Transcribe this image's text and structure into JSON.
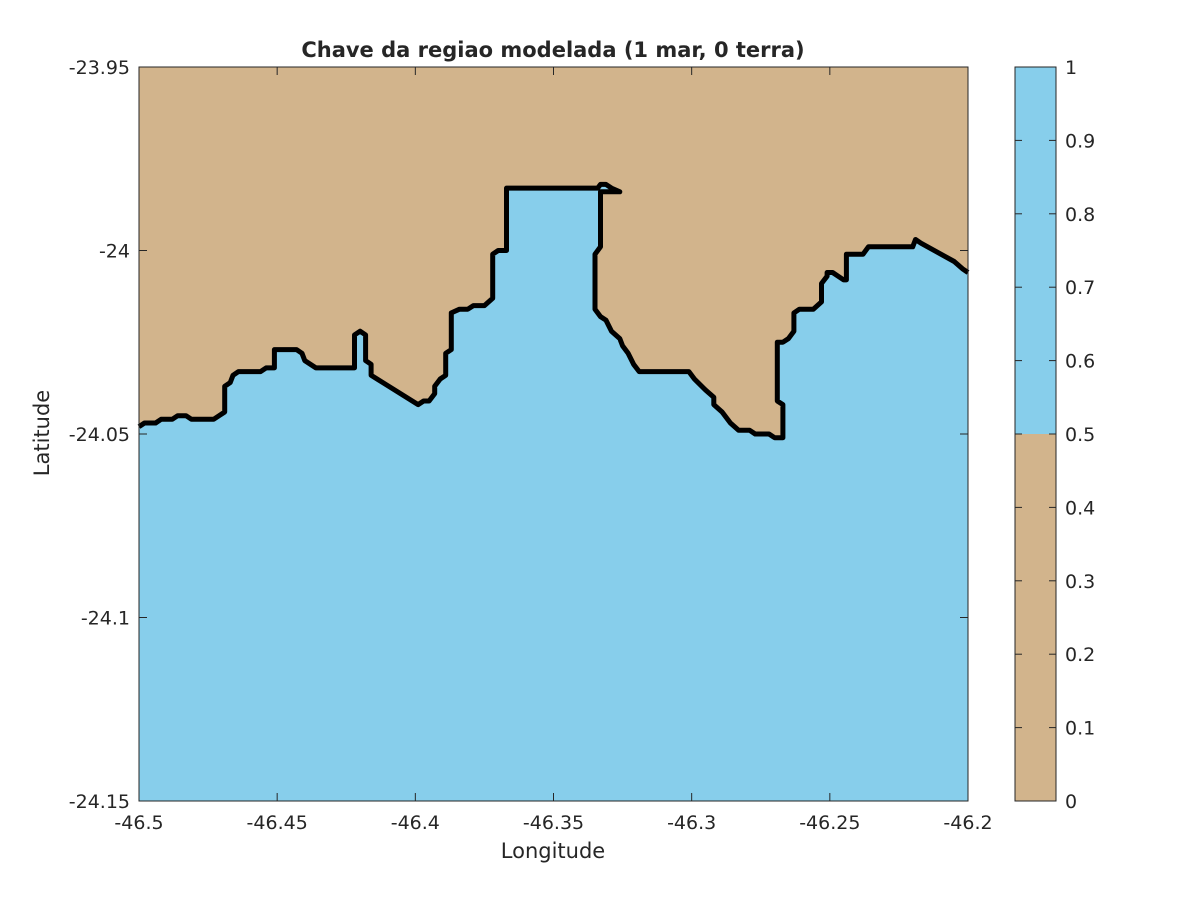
{
  "chart_data": {
    "type": "heatmap",
    "title": "Chave da regiao modelada (1 mar, 0 terra)",
    "xlabel": "Longitude",
    "ylabel": "Latitude",
    "xlim": [
      -46.5,
      -46.2
    ],
    "ylim": [
      -24.15,
      -23.95
    ],
    "xticks": [
      -46.5,
      -46.45,
      -46.4,
      -46.35,
      -46.3,
      -46.25,
      -46.2
    ],
    "xtick_labels": [
      "-46.5",
      "-46.45",
      "-46.4",
      "-46.35",
      "-46.3",
      "-46.25",
      "-46.2"
    ],
    "yticks": [
      -23.95,
      -24.0,
      -24.05,
      -24.1,
      -24.15
    ],
    "ytick_labels": [
      "-23.95",
      "-24",
      "-24.05",
      "-24.1",
      "-24.15"
    ],
    "categories": [
      {
        "value": 1,
        "meaning": "mar",
        "color": "#87ceeb"
      },
      {
        "value": 0,
        "meaning": "terra",
        "color": "#d2b48c"
      }
    ],
    "colorbar": {
      "lim": [
        0,
        1
      ],
      "ticks": [
        0,
        0.1,
        0.2,
        0.3,
        0.4,
        0.5,
        0.6,
        0.7,
        0.8,
        0.9,
        1
      ],
      "tick_labels": [
        "0",
        "0.1",
        "0.2",
        "0.3",
        "0.4",
        "0.5",
        "0.6",
        "0.7",
        "0.8",
        "0.9",
        "1"
      ],
      "segments": [
        {
          "from": 0,
          "to": 0.5,
          "color": "#d2b48c"
        },
        {
          "from": 0.5,
          "to": 1,
          "color": "#87ceeb"
        }
      ]
    },
    "coastline": {
      "color": "#000000",
      "points": [
        [
          -46.5,
          -24.048
        ],
        [
          -46.498,
          -24.047
        ],
        [
          -46.494,
          -24.047
        ],
        [
          -46.492,
          -24.046
        ],
        [
          -46.488,
          -24.046
        ],
        [
          -46.486,
          -24.045
        ],
        [
          -46.483,
          -24.045
        ],
        [
          -46.481,
          -24.046
        ],
        [
          -46.473,
          -24.046
        ],
        [
          -46.471,
          -24.045
        ],
        [
          -46.469,
          -24.044
        ],
        [
          -46.469,
          -24.037
        ],
        [
          -46.467,
          -24.036
        ],
        [
          -46.466,
          -24.034
        ],
        [
          -46.464,
          -24.033
        ],
        [
          -46.456,
          -24.033
        ],
        [
          -46.454,
          -24.032
        ],
        [
          -46.451,
          -24.032
        ],
        [
          -46.451,
          -24.027
        ],
        [
          -46.443,
          -24.027
        ],
        [
          -46.441,
          -24.028
        ],
        [
          -46.44,
          -24.03
        ],
        [
          -46.436,
          -24.032
        ],
        [
          -46.422,
          -24.032
        ],
        [
          -46.422,
          -24.023
        ],
        [
          -46.42,
          -24.022
        ],
        [
          -46.418,
          -24.023
        ],
        [
          -46.418,
          -24.03
        ],
        [
          -46.416,
          -24.031
        ],
        [
          -46.416,
          -24.034
        ],
        [
          -46.399,
          -24.042
        ],
        [
          -46.397,
          -24.041
        ],
        [
          -46.395,
          -24.041
        ],
        [
          -46.393,
          -24.039
        ],
        [
          -46.393,
          -24.037
        ],
        [
          -46.391,
          -24.035
        ],
        [
          -46.389,
          -24.034
        ],
        [
          -46.389,
          -24.028
        ],
        [
          -46.387,
          -24.027
        ],
        [
          -46.387,
          -24.017
        ],
        [
          -46.384,
          -24.016
        ],
        [
          -46.381,
          -24.016
        ],
        [
          -46.379,
          -24.015
        ],
        [
          -46.375,
          -24.015
        ],
        [
          -46.372,
          -24.013
        ],
        [
          -46.372,
          -24.001
        ],
        [
          -46.37,
          -24.0
        ],
        [
          -46.367,
          -24.0
        ],
        [
          -46.367,
          -23.983
        ],
        [
          -46.334,
          -23.983
        ],
        [
          -46.333,
          -23.982
        ],
        [
          -46.331,
          -23.982
        ],
        [
          -46.329,
          -23.983
        ],
        [
          -46.326,
          -23.984
        ],
        [
          -46.333,
          -23.984
        ],
        [
          -46.333,
          -23.999
        ],
        [
          -46.335,
          -24.001
        ],
        [
          -46.335,
          -24.016
        ],
        [
          -46.333,
          -24.018
        ],
        [
          -46.331,
          -24.019
        ],
        [
          -46.329,
          -24.022
        ],
        [
          -46.326,
          -24.024
        ],
        [
          -46.325,
          -24.026
        ],
        [
          -46.323,
          -24.028
        ],
        [
          -46.321,
          -24.031
        ],
        [
          -46.319,
          -24.033
        ],
        [
          -46.301,
          -24.033
        ],
        [
          -46.299,
          -24.035
        ],
        [
          -46.295,
          -24.038
        ],
        [
          -46.292,
          -24.04
        ],
        [
          -46.292,
          -24.042
        ],
        [
          -46.289,
          -24.044
        ],
        [
          -46.286,
          -24.047
        ],
        [
          -46.283,
          -24.049
        ],
        [
          -46.279,
          -24.049
        ],
        [
          -46.277,
          -24.05
        ],
        [
          -46.272,
          -24.05
        ],
        [
          -46.27,
          -24.051
        ],
        [
          -46.267,
          -24.051
        ],
        [
          -46.267,
          -24.042
        ],
        [
          -46.269,
          -24.041
        ],
        [
          -46.269,
          -24.025
        ],
        [
          -46.267,
          -24.025
        ],
        [
          -46.265,
          -24.024
        ],
        [
          -46.263,
          -24.022
        ],
        [
          -46.263,
          -24.017
        ],
        [
          -46.261,
          -24.016
        ],
        [
          -46.256,
          -24.016
        ],
        [
          -46.253,
          -24.014
        ],
        [
          -46.253,
          -24.009
        ],
        [
          -46.251,
          -24.007
        ],
        [
          -46.251,
          -24.006
        ],
        [
          -46.249,
          -24.006
        ],
        [
          -46.247,
          -24.007
        ],
        [
          -46.245,
          -24.008
        ],
        [
          -46.244,
          -24.008
        ],
        [
          -46.244,
          -24.001
        ],
        [
          -46.238,
          -24.001
        ],
        [
          -46.236,
          -23.999
        ],
        [
          -46.22,
          -23.999
        ],
        [
          -46.219,
          -23.997
        ],
        [
          -46.217,
          -23.998
        ],
        [
          -46.205,
          -24.003
        ],
        [
          -46.202,
          -24.005
        ],
        [
          -46.2,
          -24.006
        ]
      ]
    }
  }
}
